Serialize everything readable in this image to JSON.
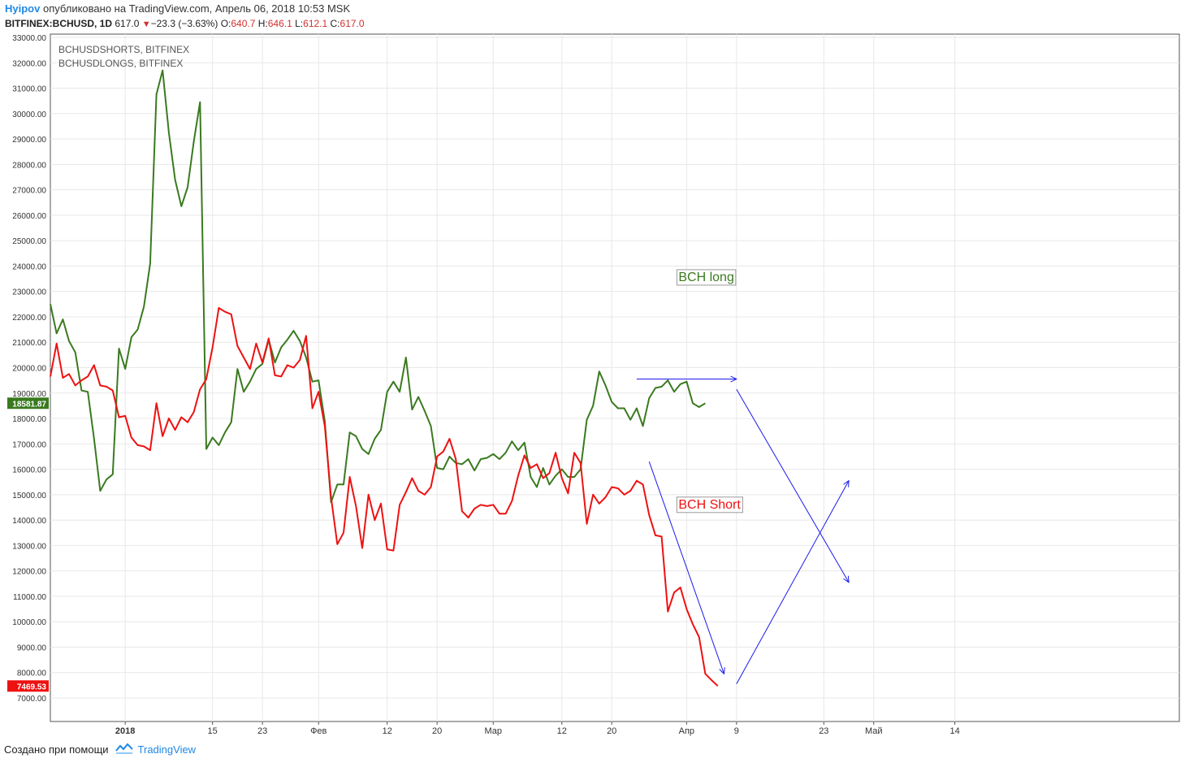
{
  "header": {
    "author": "Hyipov",
    "published_text": "опубликовано на TradingView.com, Апрель 06, 2018 10:53 MSK"
  },
  "symbol": {
    "ticker": "BITFINEX:BCHUSD, 1D",
    "last": "617.0",
    "change": "−23.3 (−3.63%)",
    "o_label": "O:",
    "o": "640.7",
    "h_label": "H:",
    "h": "646.1",
    "l_label": "L:",
    "l": "612.1",
    "c_label": "C:",
    "c": "617.0"
  },
  "colors": {
    "longs": "#3a7a1f",
    "shorts": "#ee1111",
    "arrows": "#1a1aee",
    "grid": "#e8e8e8"
  },
  "footer": {
    "created_with": "Создано при помощи",
    "brand": "TradingView"
  },
  "chart_data": {
    "type": "line",
    "legend_entries": [
      "BCHUSDSHORTS, BITFINEX",
      "BCHUSDLONGS, BITFINEX"
    ],
    "ylim": [
      6500,
      33000
    ],
    "y_ticks": [
      7000,
      8000,
      9000,
      10000,
      11000,
      12000,
      13000,
      14000,
      15000,
      16000,
      17000,
      18000,
      19000,
      20000,
      21000,
      22000,
      23000,
      24000,
      25000,
      26000,
      27000,
      28000,
      29000,
      30000,
      31000,
      32000,
      33000
    ],
    "x_axis_start": "2017-12-20",
    "x_ticks": [
      {
        "date": "2018-01-01",
        "label": "2018"
      },
      {
        "date": "2018-01-15",
        "label": "15"
      },
      {
        "date": "2018-01-23",
        "label": "23"
      },
      {
        "date": "2018-02-01",
        "label": "Фев"
      },
      {
        "date": "2018-02-12",
        "label": "12"
      },
      {
        "date": "2018-02-20",
        "label": "20"
      },
      {
        "date": "2018-03-01",
        "label": "Мар"
      },
      {
        "date": "2018-03-12",
        "label": "12"
      },
      {
        "date": "2018-03-20",
        "label": "20"
      },
      {
        "date": "2018-04-01",
        "label": "Апр"
      },
      {
        "date": "2018-04-09",
        "label": "9"
      },
      {
        "date": "2018-04-23",
        "label": "23"
      },
      {
        "date": "2018-05-01",
        "label": "Май"
      },
      {
        "date": "2018-05-14",
        "label": "14"
      }
    ],
    "series": [
      {
        "name": "BCHUSDLONGS, BITFINEX",
        "color": "#3a7a1f",
        "last_value_label": "18581.87",
        "start_date": "2017-12-20",
        "values": [
          22500,
          21350,
          21900,
          21050,
          20600,
          19100,
          19050,
          17200,
          15150,
          15600,
          15800,
          20750,
          19950,
          21200,
          21500,
          22400,
          24100,
          30750,
          31700,
          29250,
          27400,
          26350,
          27100,
          28900,
          30450,
          16800,
          17250,
          16950,
          17450,
          17850,
          19950,
          19050,
          19450,
          19950,
          20150,
          21100,
          20200,
          20800,
          21100,
          21450,
          21050,
          20400,
          19450,
          19500,
          17900,
          14700,
          15400,
          15400,
          17450,
          17300,
          16800,
          16600,
          17200,
          17550,
          19050,
          19450,
          19050,
          20400,
          18350,
          18850,
          18300,
          17700,
          16050,
          16000,
          16500,
          16250,
          16200,
          16400,
          15950,
          16400,
          16450,
          16600,
          16400,
          16650,
          17100,
          16750,
          17050,
          15700,
          15300,
          16050,
          15400,
          15750,
          16000,
          15700,
          15700,
          16000,
          17950,
          18500,
          19850,
          19300,
          18650,
          18400,
          18400,
          17950,
          18400,
          17700,
          18800,
          19200,
          19250,
          19500,
          19050,
          19350,
          19450,
          18600,
          18450,
          18600
        ]
      },
      {
        "name": "BCHUSDSHORTS, BITFINEX",
        "color": "#ee1111",
        "last_value_label": "7469.53",
        "start_date": "2017-12-20",
        "values": [
          19650,
          20950,
          19600,
          19750,
          19300,
          19500,
          19650,
          20100,
          19300,
          19250,
          19100,
          18050,
          18100,
          17250,
          16950,
          16900,
          16750,
          18600,
          17300,
          18000,
          17550,
          18050,
          17850,
          18250,
          19150,
          19550,
          20800,
          22350,
          22200,
          22100,
          20850,
          20400,
          19950,
          20950,
          20200,
          21150,
          19700,
          19650,
          20100,
          20000,
          20300,
          21250,
          18400,
          19050,
          17700,
          14900,
          13050,
          13500,
          15700,
          14550,
          12900,
          15000,
          14000,
          14650,
          12850,
          12800,
          14600,
          15100,
          15650,
          15150,
          15000,
          15300,
          16500,
          16700,
          17200,
          16400,
          14350,
          14100,
          14450,
          14600,
          14550,
          14600,
          14250,
          14250,
          14750,
          15750,
          16550,
          16050,
          16200,
          15650,
          15850,
          16650,
          15650,
          15050,
          16650,
          16250,
          13850,
          15000,
          14650,
          14900,
          15300,
          15250,
          15000,
          15150,
          15550,
          15400,
          14200,
          13400,
          13350,
          10400,
          11150,
          11350,
          10500,
          9900,
          9400,
          7950,
          7700,
          7469.53
        ]
      }
    ],
    "annotations": [
      {
        "text": "BCH long",
        "date": "2018-04-01",
        "value": 23600,
        "color": "#3a7a1f"
      },
      {
        "text": "BCH Short",
        "date": "2018-04-01",
        "value": 14650,
        "color": "#ee1111"
      }
    ],
    "drawn_arrows": [
      {
        "from": {
          "date": "2018-03-24",
          "value": 19550
        },
        "to": {
          "date": "2018-04-09",
          "value": 19550
        }
      },
      {
        "from": {
          "date": "2018-03-26",
          "value": 16300
        },
        "to": {
          "date": "2018-04-07",
          "value": 7950
        }
      },
      {
        "from": {
          "date": "2018-04-09",
          "value": 19150
        },
        "to": {
          "date": "2018-04-27",
          "value": 11550
        }
      },
      {
        "from": {
          "date": "2018-04-09",
          "value": 7550
        },
        "to": {
          "date": "2018-04-27",
          "value": 15550
        }
      }
    ]
  }
}
